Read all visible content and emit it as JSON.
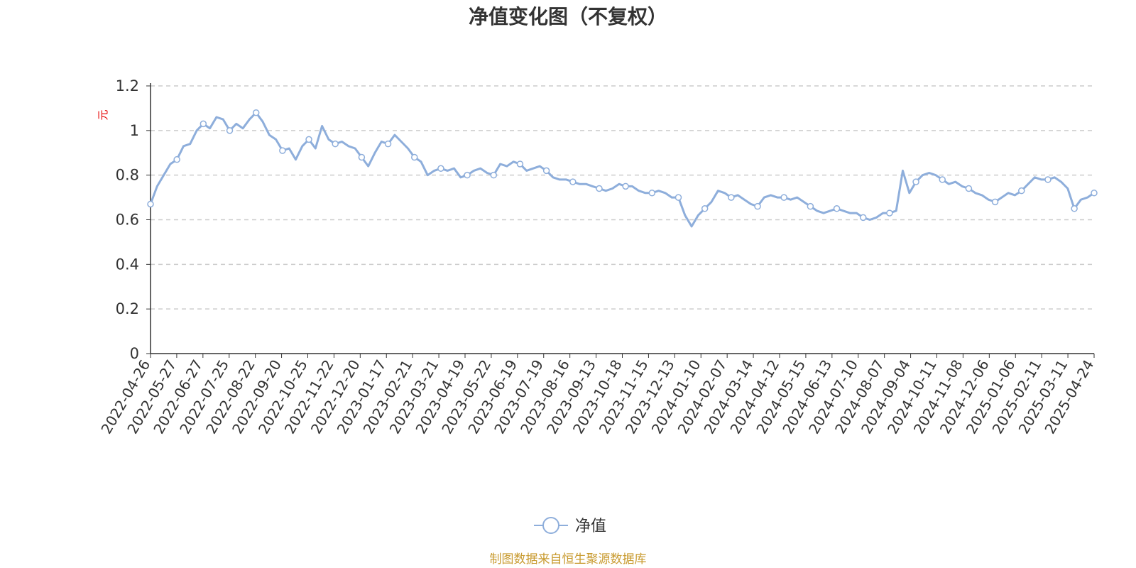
{
  "chart_data": {
    "type": "line",
    "title": "净值变化图（不复权）",
    "yunit": "元",
    "ylim": [
      0,
      1.2
    ],
    "yticks": [
      "0",
      "0.2",
      "0.4",
      "0.6",
      "0.8",
      "1",
      "1.2"
    ],
    "grid": true,
    "legend_position": "bottom-center",
    "x_tick_labels": [
      "2022-04-26",
      "2022-05-27",
      "2022-06-27",
      "2022-07-25",
      "2022-08-22",
      "2022-09-20",
      "2022-10-25",
      "2022-11-22",
      "2022-12-20",
      "2023-01-17",
      "2023-02-21",
      "2023-03-21",
      "2023-04-19",
      "2023-05-22",
      "2023-06-19",
      "2023-07-19",
      "2023-08-16",
      "2023-09-13",
      "2023-10-18",
      "2023-11-15",
      "2023-12-13",
      "2024-01-10",
      "2024-02-07",
      "2024-03-14",
      "2024-04-12",
      "2024-05-15",
      "2024-06-13",
      "2024-07-10",
      "2024-08-07",
      "2024-09-04",
      "2024-10-11",
      "2024-11-08",
      "2024-12-06",
      "2025-01-06",
      "2025-02-11",
      "2025-03-11",
      "2025-04-24"
    ],
    "series": [
      {
        "name": "净值",
        "color": "#8eaedb",
        "values": [
          0.67,
          0.75,
          0.8,
          0.85,
          0.87,
          0.93,
          0.94,
          1.0,
          1.03,
          1.01,
          1.06,
          1.05,
          1.0,
          1.03,
          1.01,
          1.05,
          1.08,
          1.04,
          0.98,
          0.96,
          0.91,
          0.92,
          0.87,
          0.93,
          0.96,
          0.92,
          1.02,
          0.96,
          0.94,
          0.95,
          0.93,
          0.92,
          0.88,
          0.84,
          0.9,
          0.95,
          0.94,
          0.98,
          0.95,
          0.92,
          0.88,
          0.86,
          0.8,
          0.82,
          0.83,
          0.82,
          0.83,
          0.79,
          0.8,
          0.82,
          0.83,
          0.81,
          0.8,
          0.85,
          0.84,
          0.86,
          0.85,
          0.82,
          0.83,
          0.84,
          0.82,
          0.79,
          0.78,
          0.78,
          0.77,
          0.76,
          0.76,
          0.75,
          0.74,
          0.73,
          0.74,
          0.76,
          0.75,
          0.75,
          0.73,
          0.72,
          0.72,
          0.73,
          0.72,
          0.7,
          0.7,
          0.62,
          0.57,
          0.62,
          0.65,
          0.68,
          0.73,
          0.72,
          0.7,
          0.71,
          0.69,
          0.67,
          0.66,
          0.7,
          0.71,
          0.7,
          0.7,
          0.69,
          0.7,
          0.68,
          0.66,
          0.64,
          0.63,
          0.64,
          0.65,
          0.64,
          0.63,
          0.63,
          0.61,
          0.6,
          0.61,
          0.63,
          0.63,
          0.64,
          0.82,
          0.72,
          0.77,
          0.8,
          0.81,
          0.8,
          0.78,
          0.76,
          0.77,
          0.75,
          0.74,
          0.72,
          0.71,
          0.69,
          0.68,
          0.7,
          0.72,
          0.71,
          0.73,
          0.76,
          0.79,
          0.78,
          0.78,
          0.79,
          0.77,
          0.74,
          0.65,
          0.69,
          0.7,
          0.72
        ]
      }
    ]
  },
  "footer": {
    "source": "制图数据来自恒生聚源数据库"
  }
}
